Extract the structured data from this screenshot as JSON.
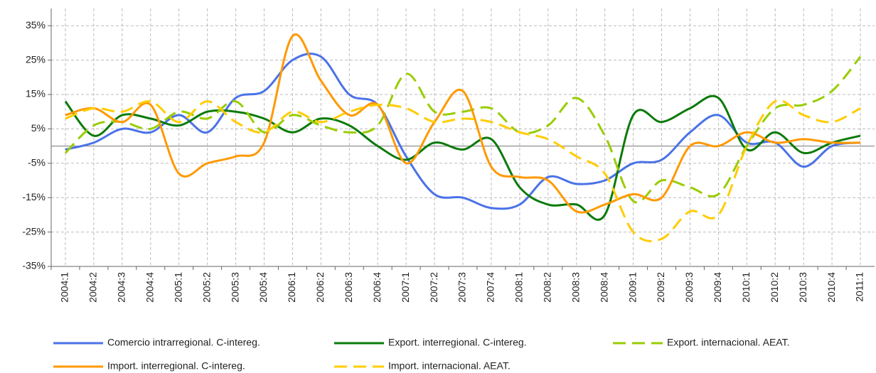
{
  "chart_data": {
    "type": "line",
    "categories": [
      "2004:1",
      "2004:2",
      "2004:3",
      "2004:4",
      "2005:1",
      "2005:2",
      "2005:3",
      "2005:4",
      "2006:1",
      "2006:2",
      "2006:3",
      "2006:4",
      "2007:1",
      "2007:2",
      "2007:3",
      "2007:4",
      "2008:1",
      "2008:2",
      "2008:3",
      "2008:4",
      "2009:1",
      "2009:2",
      "2009:3",
      "2009:4",
      "2010:1",
      "2010:2",
      "2010:3",
      "2010:4",
      "2011:1"
    ],
    "series": [
      {
        "name": "Comercio intrarregional. C-intereg.",
        "color": "#4a72e8",
        "dashed": false,
        "values": [
          -1,
          1,
          5,
          4,
          9,
          4,
          14,
          16,
          25,
          26,
          15,
          12,
          -3,
          -14,
          -15,
          -18,
          -17,
          -9,
          -11,
          -10,
          -5,
          -4,
          4,
          9,
          1,
          1,
          -6,
          0,
          1
        ]
      },
      {
        "name": "Export. interregional. C-intereg.",
        "color": "#0b7a0b",
        "dashed": false,
        "values": [
          13,
          3,
          9,
          8,
          6,
          10,
          10,
          8,
          4,
          8,
          6,
          0,
          -4,
          1,
          -1,
          2,
          -12,
          -17,
          -17,
          -20,
          9,
          7,
          11,
          14,
          -1,
          4,
          -2,
          1,
          3
        ]
      },
      {
        "name": "Export. internacional. AEAT.",
        "color": "#99cc00",
        "dashed": true,
        "values": [
          -2,
          6,
          7,
          5,
          10,
          8,
          13,
          4,
          9,
          6,
          4,
          6,
          21,
          10,
          10,
          11,
          4,
          6,
          14,
          3,
          -16,
          -10,
          -12,
          -14,
          0,
          11,
          12,
          16,
          26
        ]
      },
      {
        "name": "Import. interregional. C-intereg.",
        "color": "#ff9900",
        "dashed": false,
        "values": [
          9,
          11,
          7,
          12,
          -8,
          -5,
          -3,
          1,
          32,
          19,
          9,
          12,
          -5,
          7,
          16,
          -6,
          -9,
          -10,
          -19,
          -17,
          -14,
          -15,
          0,
          0,
          4,
          1,
          2,
          1,
          1
        ]
      },
      {
        "name": "Import. internacional. AEAT.",
        "color": "#ffcc00",
        "dashed": true,
        "values": [
          8,
          11,
          10,
          13,
          7,
          13,
          7,
          4,
          10,
          7,
          10,
          12,
          11,
          7,
          8,
          7,
          4,
          2,
          -3,
          -8,
          -25,
          -27,
          -19,
          -20,
          0,
          13,
          9,
          7,
          11
        ]
      }
    ],
    "ylim": [
      -35,
      40
    ],
    "yticks": [
      {
        "value": -35,
        "label": "-35%"
      },
      {
        "value": -25,
        "label": "-25%"
      },
      {
        "value": -15,
        "label": "-15%"
      },
      {
        "value": -5,
        "label": "-5%"
      },
      {
        "value": 5,
        "label": "5%"
      },
      {
        "value": 15,
        "label": "15%"
      },
      {
        "value": 25,
        "label": "25%"
      },
      {
        "value": 35,
        "label": "35%"
      }
    ],
    "grid": true,
    "legend": "bottom"
  }
}
